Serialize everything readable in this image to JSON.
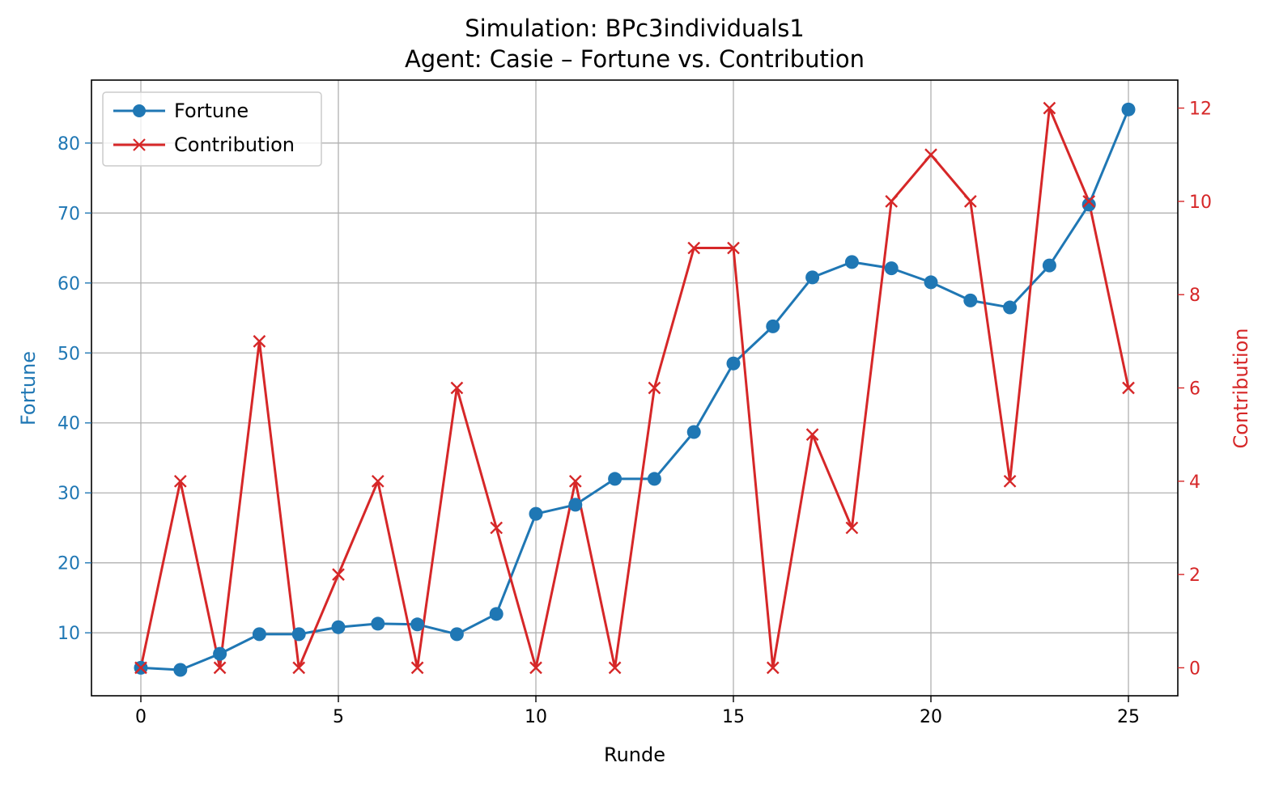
{
  "chart_data": {
    "type": "line",
    "title": "Simulation: BPc3individuals1",
    "subtitle": "Agent: Casie – Fortune vs. Contribution",
    "xlabel": "Runde",
    "ylabel_left": "Fortune",
    "ylabel_right": "Contribution",
    "x": [
      0,
      1,
      2,
      3,
      4,
      5,
      6,
      7,
      8,
      9,
      10,
      11,
      12,
      13,
      14,
      15,
      16,
      17,
      18,
      19,
      20,
      21,
      22,
      23,
      24,
      25
    ],
    "xlim": [
      -1.25,
      26.25
    ],
    "xticks": [
      0,
      5,
      10,
      15,
      20,
      25
    ],
    "ylim_left": [
      1,
      89
    ],
    "yticks_left": [
      10,
      20,
      30,
      40,
      50,
      60,
      70,
      80
    ],
    "ylim_right": [
      -0.6,
      12.6
    ],
    "yticks_right": [
      0,
      2,
      4,
      6,
      8,
      10,
      12
    ],
    "grid": true,
    "legend_position": "upper-left",
    "colors": {
      "fortune": "#1f77b4",
      "contribution": "#d62728",
      "grid": "#b0b0b0"
    },
    "series": [
      {
        "name": "Fortune",
        "axis": "left",
        "marker": "circle",
        "values": [
          5,
          4.7,
          7,
          9.8,
          9.8,
          10.8,
          11.3,
          11.2,
          9.8,
          12.7,
          27,
          28.3,
          32,
          32,
          38.7,
          48.5,
          53.8,
          60.8,
          63,
          62.1,
          60.1,
          57.5,
          56.5,
          62.5,
          71.2,
          84.8
        ]
      },
      {
        "name": "Contribution",
        "axis": "right",
        "marker": "x",
        "values": [
          0,
          4,
          0,
          7,
          0,
          2,
          4,
          0,
          6,
          3,
          0,
          4,
          0,
          6,
          9,
          9,
          0,
          5,
          3,
          10,
          11,
          10,
          4,
          12,
          10,
          6
        ]
      }
    ]
  }
}
